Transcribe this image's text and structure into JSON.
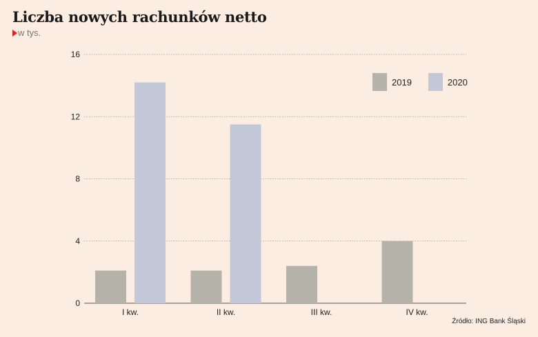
{
  "title": "Liczba nowych rachunków netto",
  "subtitle": "w tys.",
  "source": "Źródło: ING Bank Śląski",
  "colors": {
    "background": "#fbede2",
    "series_2019": "#b5b3a9",
    "series_2020": "#c3c8d8",
    "grid": "#9a9a9a",
    "marker": "#e2231a"
  },
  "chart_data": {
    "type": "bar",
    "categories": [
      "I kw.",
      "II kw.",
      "III kw.",
      "IV kw."
    ],
    "series": [
      {
        "name": "2019",
        "values": [
          2.1,
          2.1,
          2.4,
          4.0
        ]
      },
      {
        "name": "2020",
        "values": [
          14.2,
          11.5,
          null,
          null
        ]
      }
    ],
    "title": "Liczba nowych rachunków netto",
    "subtitle": "w tys.",
    "xlabel": "",
    "ylabel": "",
    "ylim": [
      0,
      16
    ],
    "yticks": [
      0,
      4,
      8,
      12,
      16
    ],
    "grid": true,
    "legend": "top-right"
  }
}
